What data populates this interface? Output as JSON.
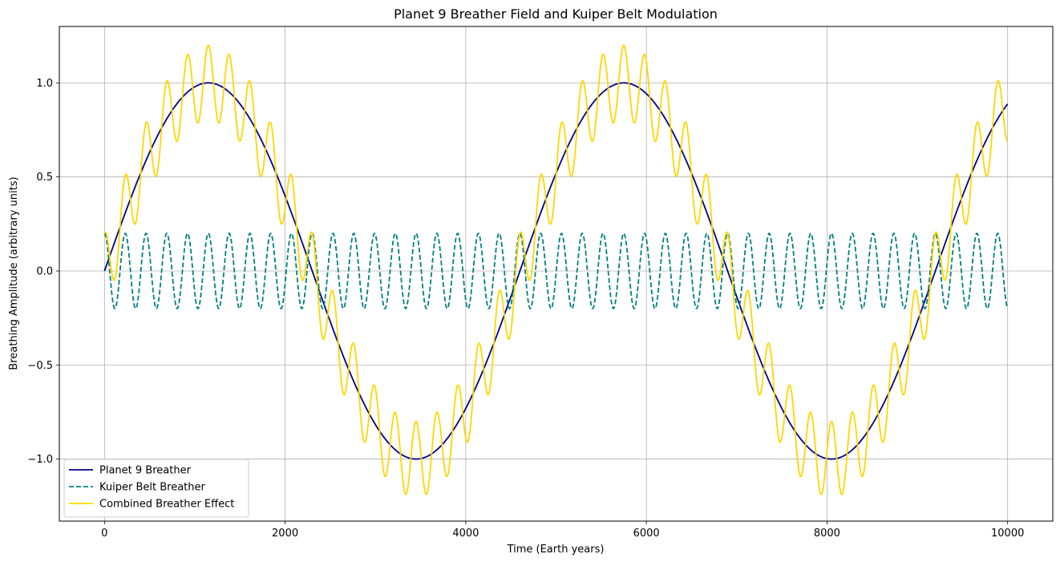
{
  "chart_data": {
    "type": "line",
    "title": "Planet 9 Breather Field and Kuiper Belt Modulation",
    "xlabel": "Time (Earth years)",
    "ylabel": "Breathing Amplitude (arbitrary units)",
    "xlim": [
      -500,
      10500
    ],
    "ylim": [
      -1.33,
      1.3
    ],
    "xticks": [
      0,
      2000,
      4000,
      6000,
      8000,
      10000
    ],
    "xtick_labels": [
      "0",
      "2000",
      "4000",
      "6000",
      "8000",
      "10000"
    ],
    "yticks": [
      -1.0,
      -0.5,
      0.0,
      0.5,
      1.0
    ],
    "ytick_labels": [
      "−1.0",
      "−0.5",
      "0.0",
      "0.5",
      "1.0"
    ],
    "grid": true,
    "legend_position": "lower-left",
    "x_range": [
      0,
      10000
    ],
    "series": [
      {
        "name": "Planet 9 Breather",
        "color": "#00008b",
        "style": "solid",
        "formula": "sin(2*pi*x/4600)",
        "amplitude": 1.0,
        "period": 4600,
        "phase_offset": 0
      },
      {
        "name": "Kuiper Belt Breather",
        "color": "#008080",
        "style": "dashed",
        "formula": "0.2*cos(2*pi*x/230)",
        "amplitude": 0.2,
        "period": 230
      },
      {
        "name": "Combined Breather Effect",
        "color": "#ffd700",
        "style": "solid",
        "formula": "sin(2*pi*x/4600) + 0.2*cos(2*pi*x/230)"
      }
    ]
  }
}
